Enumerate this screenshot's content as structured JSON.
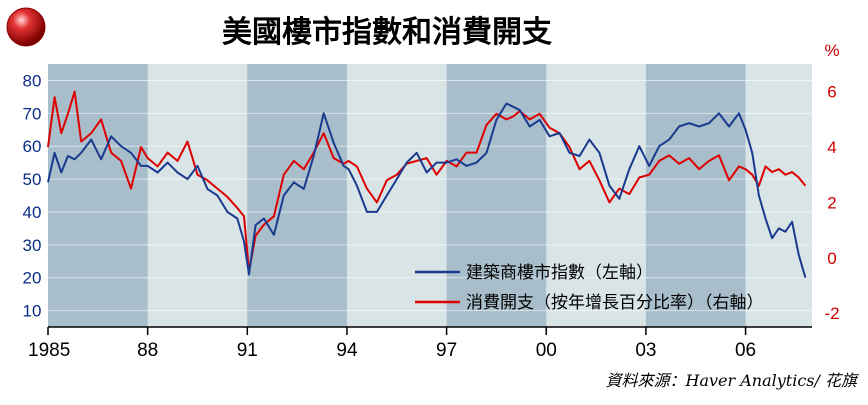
{
  "chart_data": {
    "type": "line",
    "title": "美國樓市指數和消費開支",
    "right_unit": "%",
    "x_ticks": [
      "1985",
      "88",
      "91",
      "94",
      "97",
      "00",
      "03",
      "06"
    ],
    "left_axis": {
      "ticks": [
        80,
        70,
        60,
        50,
        40,
        30,
        20,
        10
      ],
      "ylim": [
        5,
        85
      ]
    },
    "right_axis": {
      "ticks": [
        "6",
        "4",
        "2",
        "0",
        "-2"
      ],
      "ylim": [
        -2.5,
        7
      ]
    },
    "x_range": [
      1985,
      2008
    ],
    "shaded_bands": [
      [
        1985,
        1988
      ],
      [
        1991,
        1994
      ],
      [
        1997,
        2000
      ],
      [
        2003,
        2006
      ]
    ],
    "legend_position": "bottom-right",
    "series": [
      {
        "name": "建築商樓市指數（左軸）",
        "axis": "left",
        "color": "#1a3a8f",
        "x": [
          1985.0,
          1985.2,
          1985.4,
          1985.6,
          1985.8,
          1986.0,
          1986.3,
          1986.6,
          1986.9,
          1987.2,
          1987.5,
          1987.8,
          1988.0,
          1988.3,
          1988.6,
          1988.9,
          1989.2,
          1989.5,
          1989.8,
          1990.1,
          1990.4,
          1990.7,
          1990.9,
          1991.05,
          1991.25,
          1991.5,
          1991.8,
          1992.1,
          1992.4,
          1992.7,
          1993.0,
          1993.3,
          1993.6,
          1993.9,
          1994.05,
          1994.3,
          1994.6,
          1994.9,
          1995.2,
          1995.5,
          1995.8,
          1996.1,
          1996.4,
          1996.7,
          1997.0,
          1997.3,
          1997.6,
          1997.9,
          1998.2,
          1998.5,
          1998.8,
          1999.0,
          1999.2,
          1999.5,
          1999.8,
          2000.1,
          2000.4,
          2000.7,
          2001.0,
          2001.3,
          2001.6,
          2001.9,
          2002.2,
          2002.5,
          2002.8,
          2003.1,
          2003.4,
          2003.7,
          2004.0,
          2004.3,
          2004.6,
          2004.9,
          2005.2,
          2005.5,
          2005.8,
          2006.0,
          2006.2,
          2006.4,
          2006.6,
          2006.8,
          2007.0,
          2007.2,
          2007.4,
          2007.6,
          2007.8
        ],
        "values": [
          49,
          58,
          52,
          57,
          56,
          58,
          62,
          56,
          63,
          60,
          58,
          54,
          54,
          52,
          55,
          52,
          50,
          54,
          47,
          45,
          40,
          38,
          31,
          21,
          36,
          38,
          33,
          45,
          49,
          47,
          57,
          70,
          61,
          54,
          53,
          48,
          40,
          40,
          45,
          50,
          55,
          58,
          52,
          55,
          55,
          56,
          54,
          55,
          58,
          68,
          73,
          72,
          71,
          66,
          68,
          63,
          64,
          58,
          57,
          62,
          58,
          48,
          44,
          53,
          60,
          54,
          60,
          62,
          66,
          67,
          66,
          67,
          70,
          66,
          70,
          65,
          58,
          45,
          38,
          32,
          35,
          34,
          37,
          27,
          20
        ]
      },
      {
        "name": "消費開支（按年增長百分比率）（右軸）",
        "axis": "right",
        "color": "#dd0000",
        "x": [
          1985.0,
          1985.2,
          1985.4,
          1985.6,
          1985.8,
          1986.0,
          1986.3,
          1986.6,
          1986.9,
          1987.2,
          1987.5,
          1987.8,
          1988.0,
          1988.3,
          1988.6,
          1988.9,
          1989.2,
          1989.5,
          1989.8,
          1990.1,
          1990.4,
          1990.7,
          1990.9,
          1991.05,
          1991.25,
          1991.5,
          1991.8,
          1992.1,
          1992.4,
          1992.7,
          1993.0,
          1993.3,
          1993.6,
          1993.9,
          1994.05,
          1994.3,
          1994.6,
          1994.9,
          1995.2,
          1995.5,
          1995.8,
          1996.1,
          1996.4,
          1996.7,
          1997.0,
          1997.3,
          1997.6,
          1997.9,
          1998.2,
          1998.5,
          1998.8,
          1999.0,
          1999.2,
          1999.5,
          1999.8,
          2000.1,
          2000.4,
          2000.7,
          2001.0,
          2001.3,
          2001.6,
          2001.9,
          2002.2,
          2002.5,
          2002.8,
          2003.1,
          2003.4,
          2003.7,
          2004.0,
          2004.3,
          2004.6,
          2004.9,
          2005.2,
          2005.5,
          2005.8,
          2006.0,
          2006.2,
          2006.4,
          2006.6,
          2006.8,
          2007.0,
          2007.2,
          2007.4,
          2007.6,
          2007.8
        ],
        "values": [
          4.0,
          5.8,
          4.5,
          5.2,
          6.0,
          4.2,
          4.5,
          5.0,
          3.8,
          3.5,
          2.5,
          4.0,
          3.6,
          3.3,
          3.8,
          3.5,
          4.2,
          3.0,
          2.8,
          2.5,
          2.2,
          1.8,
          1.5,
          -0.5,
          0.8,
          1.2,
          1.5,
          3.0,
          3.5,
          3.2,
          3.8,
          4.5,
          3.6,
          3.4,
          3.5,
          3.3,
          2.5,
          2.0,
          2.8,
          3.0,
          3.4,
          3.5,
          3.6,
          3.0,
          3.5,
          3.3,
          3.8,
          3.8,
          4.8,
          5.2,
          5.0,
          5.1,
          5.3,
          5.0,
          5.2,
          4.7,
          4.5,
          4.0,
          3.2,
          3.5,
          2.8,
          2.0,
          2.5,
          2.3,
          2.9,
          3.0,
          3.5,
          3.7,
          3.4,
          3.6,
          3.2,
          3.5,
          3.7,
          2.8,
          3.3,
          3.2,
          3.0,
          2.6,
          3.3,
          3.1,
          3.2,
          3.0,
          3.1,
          2.9,
          2.6
        ]
      }
    ]
  },
  "source": "資料來源：Haver Analytics/ 花旗"
}
